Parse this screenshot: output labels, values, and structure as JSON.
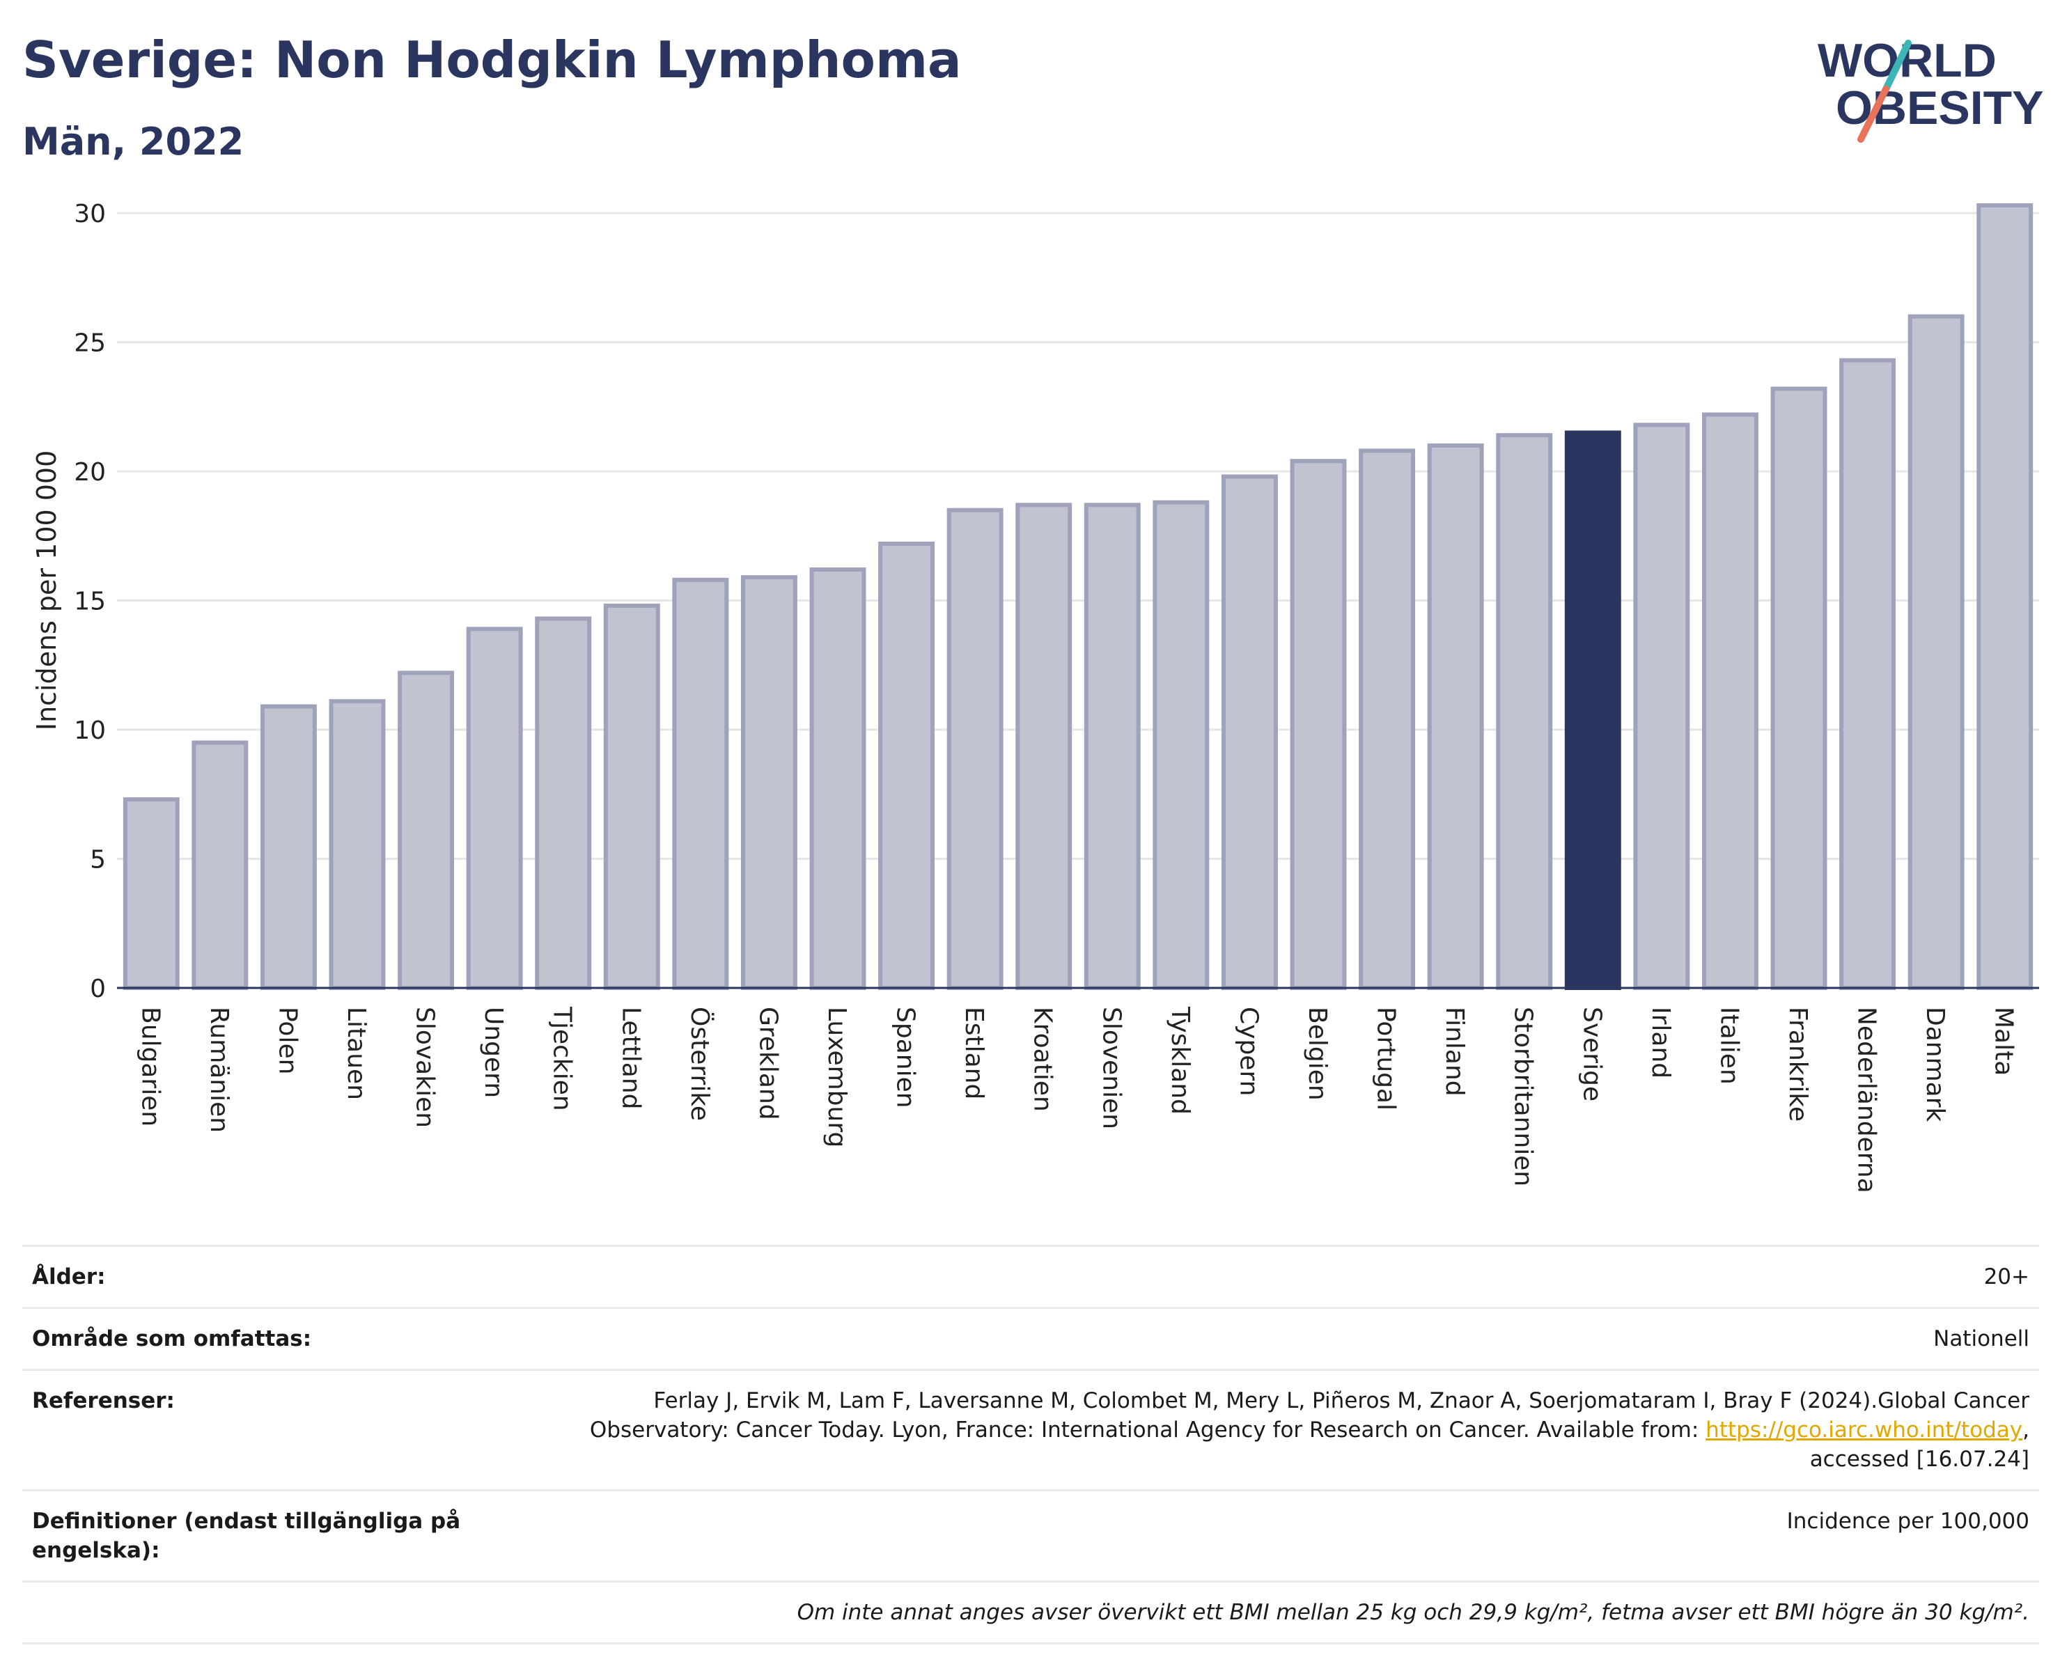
{
  "header": {
    "title": "Sverige: Non Hodgkin Lymphoma",
    "subtitle": "Män, 2022",
    "logo_line1": "WORLD",
    "logo_line2": "OBESITY"
  },
  "colors": {
    "title": "#2a3560",
    "bar_default": "#c0c4d1",
    "bar_default_stroke": "#9ea3bb",
    "bar_highlight": "#2a3560",
    "logo_text": "#2a3560",
    "logo_slash_top": "#3bb5b5",
    "logo_slash_bottom": "#e8735a",
    "link": "#e0a800"
  },
  "chart_data": {
    "type": "bar",
    "title": "Sverige: Non Hodgkin Lymphoma",
    "subtitle": "Män, 2022",
    "xlabel": "",
    "ylabel": "Incidens per 100 000",
    "ylim": [
      0,
      31
    ],
    "yticks": [
      0,
      5,
      10,
      15,
      20,
      25,
      30
    ],
    "grid": true,
    "highlight": "Sverige",
    "categories": [
      "Bulgarien",
      "Rumänien",
      "Polen",
      "Litauen",
      "Slovakien",
      "Ungern",
      "Tjeckien",
      "Lettland",
      "Österrike",
      "Grekland",
      "Luxemburg",
      "Spanien",
      "Estland",
      "Kroatien",
      "Slovenien",
      "Tyskland",
      "Cypern",
      "Belgien",
      "Portugal",
      "Finland",
      "Storbritannien",
      "Sverige",
      "Irland",
      "Italien",
      "Frankrike",
      "Nederländerna",
      "Danmark",
      "Malta"
    ],
    "values": [
      7.3,
      9.5,
      10.9,
      11.1,
      12.2,
      13.9,
      14.3,
      14.8,
      15.8,
      15.9,
      16.2,
      17.2,
      18.5,
      18.7,
      18.7,
      18.8,
      19.8,
      20.4,
      20.8,
      21.0,
      21.4,
      21.5,
      21.8,
      22.2,
      23.2,
      24.3,
      26.0,
      30.3
    ]
  },
  "info": {
    "age_label": "Ålder:",
    "age_value": "20+",
    "area_label": "Område som omfattas:",
    "area_value": "Nationell",
    "ref_label": "Referenser:",
    "ref_text_1": "Ferlay J, Ervik M, Lam F, Laversanne M, Colombet M, Mery L, Piñeros M, Znaor A, Soerjomataram I, Bray F (2024).Global Cancer",
    "ref_text_2": "Observatory: Cancer Today. Lyon, France: International Agency for Research on Cancer. Available from: ",
    "ref_link": "https://gco.iarc.who.int/today",
    "ref_text_3": ",",
    "ref_text_4": "accessed [16.07.24]",
    "def_label": "Definitioner (endast tillgängliga på engelska):",
    "def_value": "Incidence per 100,000",
    "footnote": "Om inte annat anges avser övervikt ett BMI mellan 25 kg och 29,9 kg/m², fetma avser ett BMI högre än 30 kg/m²."
  }
}
